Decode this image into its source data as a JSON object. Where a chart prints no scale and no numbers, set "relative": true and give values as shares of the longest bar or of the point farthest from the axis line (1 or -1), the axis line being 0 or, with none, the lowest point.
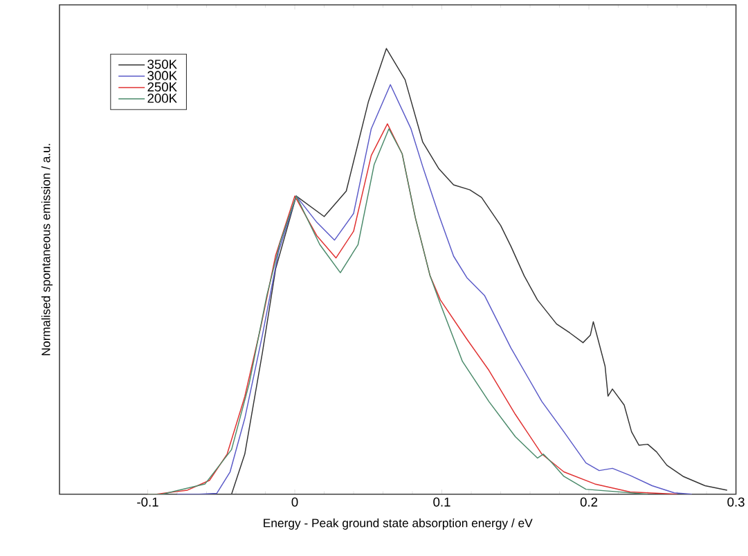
{
  "chart_data": {
    "type": "line",
    "relative": true,
    "xlabel": "Energy - Peak ground state absorption energy / eV",
    "ylabel": "Normalised spontaneous emission / a.u.",
    "xlim": [
      -0.16,
      0.3
    ],
    "xticks": [
      -0.1,
      0,
      0.1,
      0.2,
      0.3
    ],
    "legend": "top left",
    "grid": false,
    "marker": "none",
    "line_style": "solid",
    "series": [
      {
        "name": "350K",
        "color": "#333333",
        "x": [
          -0.06,
          -0.05,
          -0.043,
          -0.034,
          -0.022,
          -0.013,
          0.001,
          0.02,
          0.035,
          0.05,
          0.0623,
          0.075,
          0.087,
          0.098,
          0.108,
          0.119,
          0.127,
          0.14,
          0.147,
          0.156,
          0.165,
          0.178,
          0.187,
          0.196,
          0.201,
          0.203,
          0.206,
          0.211,
          0.213,
          0.216,
          0.224,
          0.229,
          0.234,
          0.24,
          0.246,
          0.253,
          0.264,
          0.279,
          0.294
        ],
        "values": [
          0,
          0,
          0,
          0.09,
          0.318,
          0.506,
          0.669,
          0.623,
          0.68,
          0.88,
          1,
          0.93,
          0.79,
          0.73,
          0.694,
          0.683,
          0.666,
          0.603,
          0.556,
          0.49,
          0.436,
          0.382,
          0.362,
          0.34,
          0.357,
          0.387,
          0.35,
          0.287,
          0.22,
          0.236,
          0.2,
          0.14,
          0.11,
          0.112,
          0.095,
          0.065,
          0.04,
          0.019,
          0.009
        ]
      },
      {
        "name": "300K",
        "color": "#5a5ac8",
        "x": [
          -0.08,
          -0.065,
          -0.053,
          -0.044,
          -0.034,
          -0.022,
          -0.011,
          0.001,
          0.015,
          0.027,
          0.04,
          0.052,
          0.065,
          0.079,
          0.087,
          0.098,
          0.108,
          0.117,
          0.129,
          0.147,
          0.168,
          0.183,
          0.198,
          0.207,
          0.216,
          0.228,
          0.243,
          0.258,
          0.27
        ],
        "values": [
          0,
          0,
          0.002,
          0.05,
          0.17,
          0.357,
          0.545,
          0.669,
          0.61,
          0.57,
          0.63,
          0.82,
          0.919,
          0.82,
          0.735,
          0.626,
          0.534,
          0.486,
          0.446,
          0.328,
          0.208,
          0.14,
          0.07,
          0.053,
          0.058,
          0.042,
          0.019,
          0.003,
          0
        ]
      },
      {
        "name": "250K",
        "color": "#e03030",
        "x": [
          -0.1,
          -0.094,
          -0.073,
          -0.058,
          -0.046,
          -0.034,
          -0.023,
          -0.013,
          0.0,
          0.015,
          0.028,
          0.04,
          0.052,
          0.063,
          0.073,
          0.082,
          0.092,
          0.099,
          0.117,
          0.132,
          0.15,
          0.168,
          0.183,
          0.204,
          0.228,
          0.26
        ],
        "values": [
          0,
          0,
          0.009,
          0.031,
          0.09,
          0.219,
          0.377,
          0.536,
          0.669,
          0.58,
          0.53,
          0.59,
          0.76,
          0.831,
          0.764,
          0.62,
          0.49,
          0.436,
          0.348,
          0.278,
          0.179,
          0.09,
          0.05,
          0.023,
          0.005,
          0
        ]
      },
      {
        "name": "200K",
        "color": "#4a8a6a",
        "x": [
          -0.1,
          -0.09,
          -0.061,
          -0.043,
          -0.031,
          -0.019,
          -0.01,
          0.001,
          0.017,
          0.031,
          0.043,
          0.054,
          0.064,
          0.073,
          0.082,
          0.092,
          0.099,
          0.114,
          0.132,
          0.15,
          0.165,
          0.169,
          0.175,
          0.183,
          0.198,
          0.24
        ],
        "values": [
          0,
          0,
          0.023,
          0.1,
          0.248,
          0.446,
          0.565,
          0.669,
          0.56,
          0.497,
          0.56,
          0.74,
          0.82,
          0.764,
          0.62,
          0.49,
          0.427,
          0.298,
          0.208,
          0.129,
          0.081,
          0.09,
          0.07,
          0.04,
          0.011,
          0
        ]
      }
    ]
  }
}
